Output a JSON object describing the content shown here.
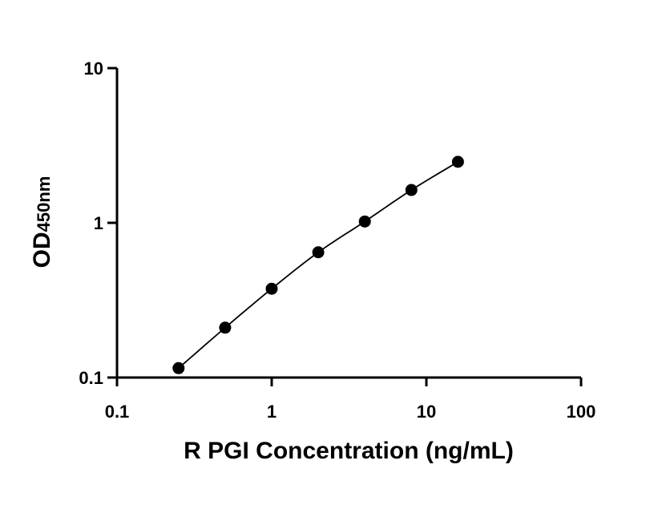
{
  "chart_data": {
    "type": "scatter",
    "xscale": "log",
    "yscale": "log",
    "xlim": [
      0.1,
      100
    ],
    "ylim": [
      0.1,
      10
    ],
    "xlabel": "R PGI Concentration (ng/mL)",
    "ylabel_main": "OD",
    "ylabel_sub": "450nm",
    "x_ticks": [
      0.1,
      1,
      10,
      100
    ],
    "x_tick_labels": [
      "0.1",
      "1",
      "10",
      "100"
    ],
    "y_ticks": [
      0.1,
      1,
      10
    ],
    "y_tick_labels": [
      "0.1",
      "1",
      "10"
    ],
    "grid": false,
    "series": [
      {
        "x": [
          0.25,
          0.5,
          1,
          2,
          4,
          8,
          16
        ],
        "y": [
          0.115,
          0.21,
          0.375,
          0.645,
          1.02,
          1.63,
          2.48
        ],
        "marker": "circle",
        "fit_line": true,
        "color": "#000000"
      }
    ]
  }
}
